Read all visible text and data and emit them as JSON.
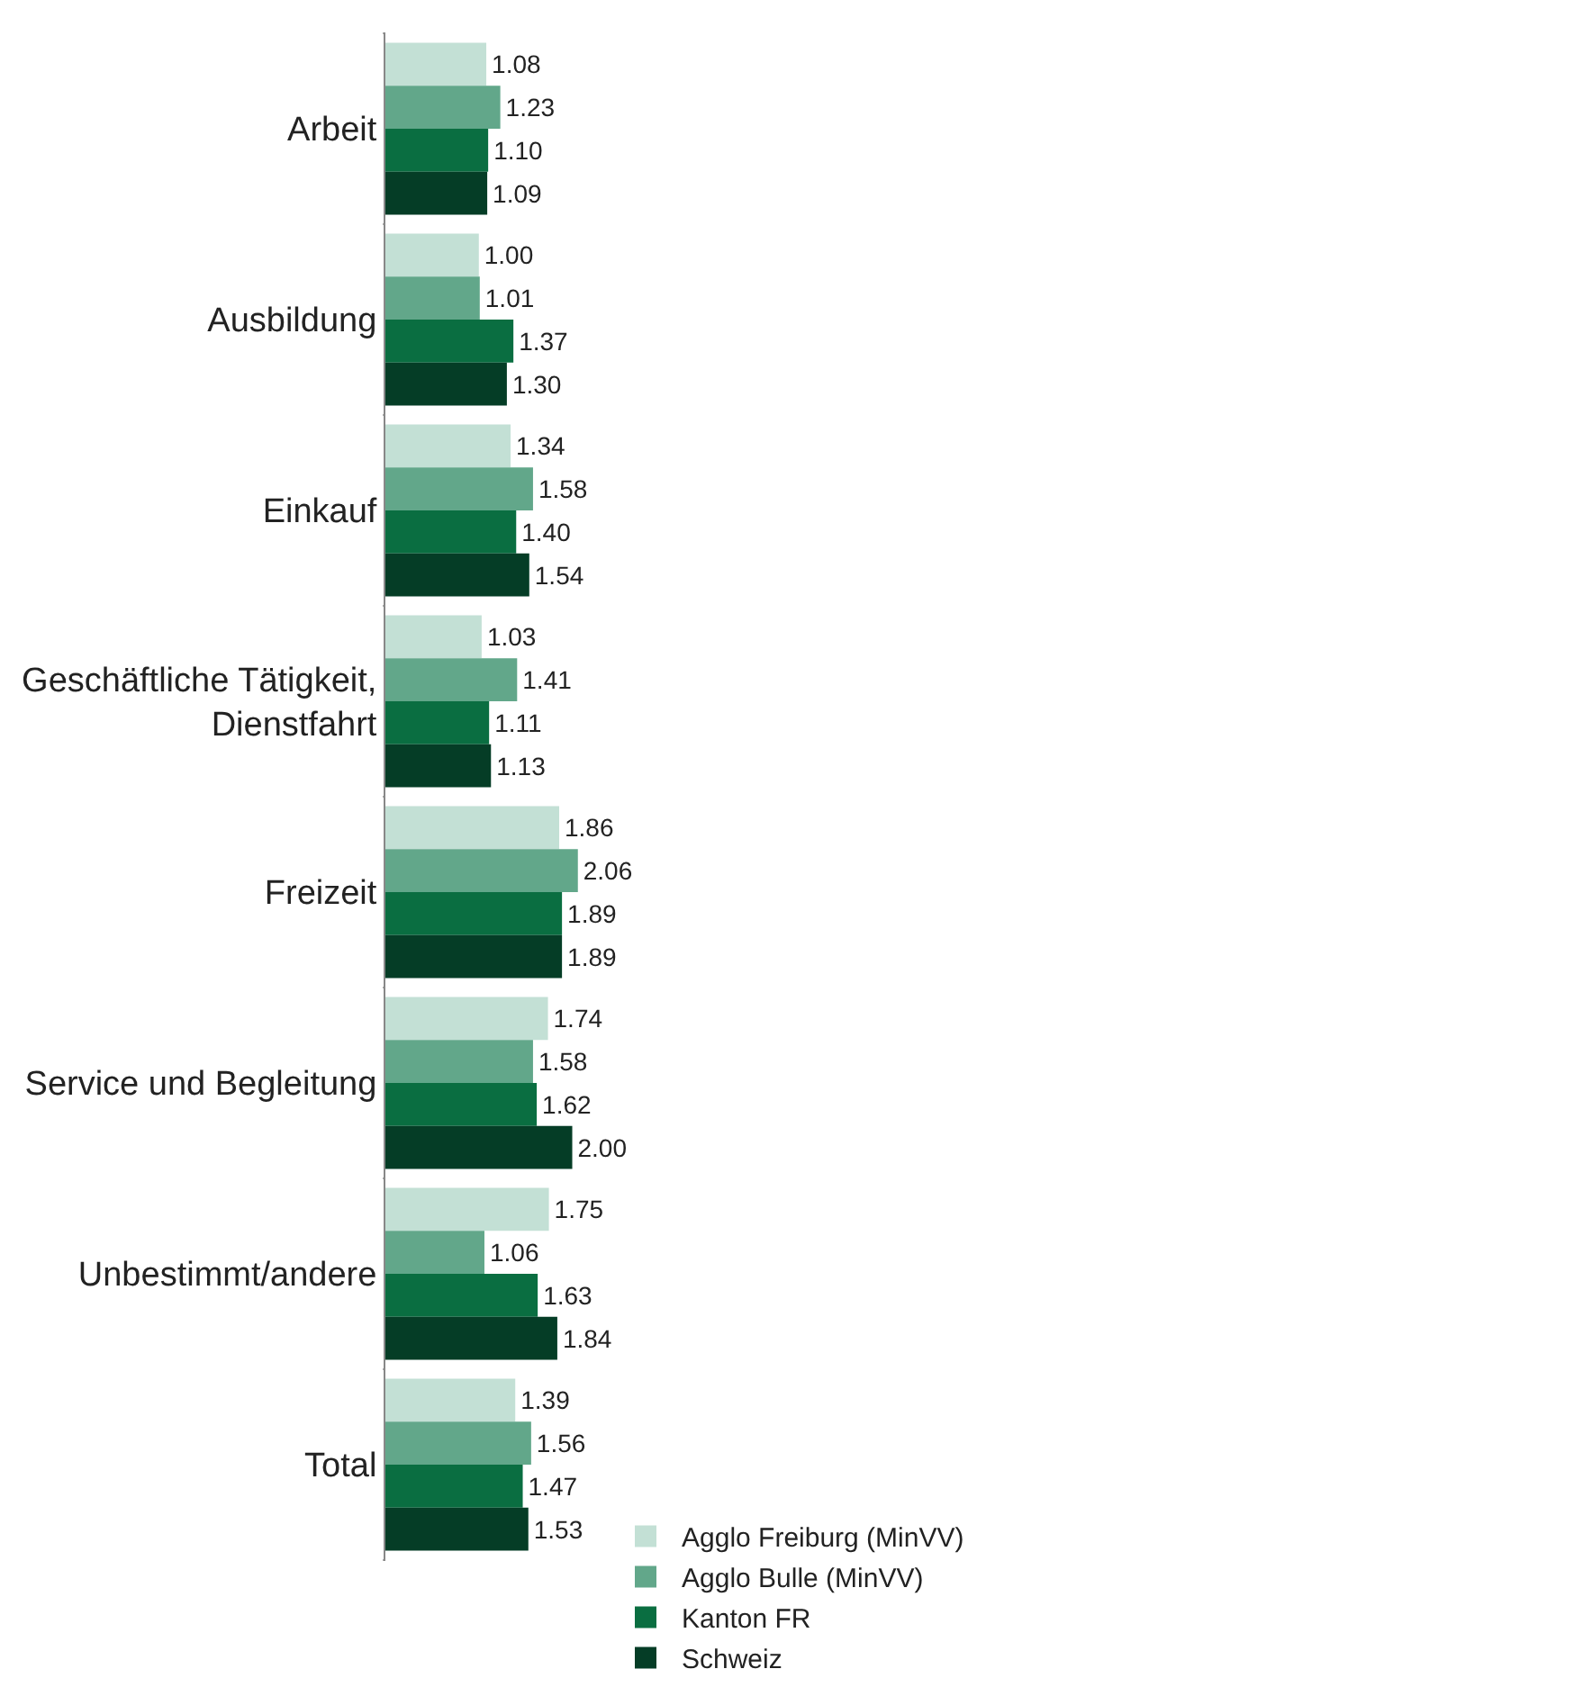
{
  "chart_data": {
    "type": "bar",
    "orientation": "horizontal",
    "categories": [
      "Arbeit",
      "Ausbildung",
      "Einkauf",
      "Geschäftliche Tätigkeit, Dienstfahrt",
      "Freizeit",
      "Service und Begleitung",
      "Unbestimmt/andere",
      "Total"
    ],
    "series": [
      {
        "name": "Agglo Freiburg (MinVV)",
        "color": "#c3e0d5",
        "values": [
          1.08,
          1.0,
          1.34,
          1.03,
          1.86,
          1.74,
          1.75,
          1.39
        ],
        "value_labels": [
          "1.08",
          "1.00",
          "1.34",
          "1.03",
          "1.86",
          "1.74",
          "1.75",
          "1.39"
        ]
      },
      {
        "name": "Agglo Bulle (MinVV)",
        "color": "#62a78a",
        "values": [
          1.23,
          1.01,
          1.58,
          1.41,
          2.06,
          1.58,
          1.06,
          1.56
        ],
        "value_labels": [
          "1.23",
          "1.01",
          "1.58",
          "1.41",
          "2.06",
          "1.58",
          "1.06",
          "1.56"
        ]
      },
      {
        "name": "Kanton FR",
        "color": "#0a6e41",
        "values": [
          1.1,
          1.37,
          1.4,
          1.11,
          1.89,
          1.62,
          1.63,
          1.47
        ],
        "value_labels": [
          "1.10",
          "1.37",
          "1.40",
          "1.11",
          "1.89",
          "1.62",
          "1.63",
          "1.47"
        ]
      },
      {
        "name": "Schweiz",
        "color": "#053d26",
        "values": [
          1.09,
          1.3,
          1.54,
          1.13,
          1.89,
          2.0,
          1.84,
          1.53
        ],
        "value_labels": [
          "1.09",
          "1.30",
          "1.54",
          "1.13",
          "1.89",
          "2.00",
          "1.84",
          "1.53"
        ]
      }
    ],
    "grid": false,
    "legend": "bottom"
  }
}
